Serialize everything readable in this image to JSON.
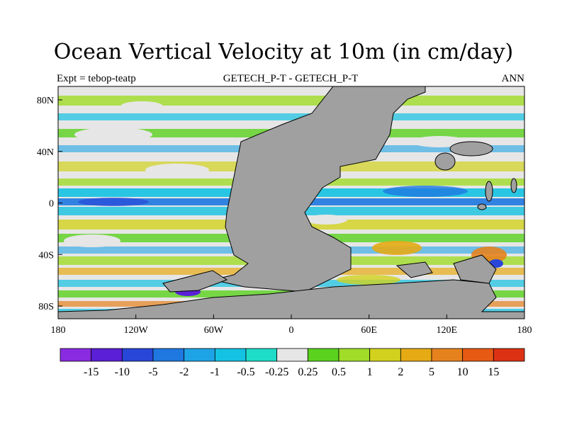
{
  "title": "Ocean Vertical Velocity at 10m (in cm/day)",
  "left_label": "Expt = tebop-teatp",
  "center_label": "GETECH_P-T - GETECH_P-T",
  "right_label": "ANN",
  "lon_ticks": [
    "180",
    "120W",
    "60W",
    "0",
    "60E",
    "120E",
    "180"
  ],
  "lat_ticks": [
    "80N",
    "40N",
    "0",
    "40S",
    "80S"
  ],
  "colorbar": {
    "labels": [
      "-15",
      "-10",
      "-5",
      "-2",
      "-1",
      "-0.5",
      "-0.25",
      "0.25",
      "0.5",
      "1",
      "2",
      "5",
      "10",
      "15"
    ],
    "colors": [
      "#8a2be2",
      "#5a1fd6",
      "#2847d8",
      "#1e78e0",
      "#1ea4e6",
      "#14c2e2",
      "#1edcc8",
      "#e6e6e6",
      "#5ad21e",
      "#a0dc28",
      "#d2d21e",
      "#e6aa14",
      "#e6821e",
      "#e65a14",
      "#dc3214"
    ]
  },
  "land_color": "#a0a0a0"
}
